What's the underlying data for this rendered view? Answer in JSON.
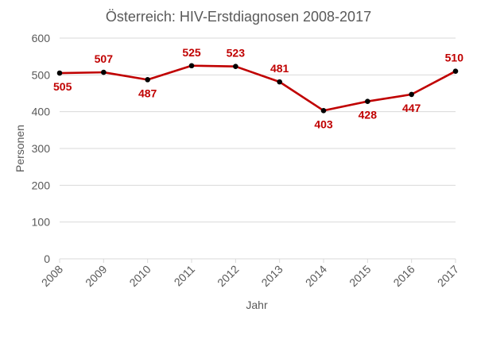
{
  "chart_data": {
    "type": "line",
    "title": "Österreich: HIV-Erstdiagnosen 2008-2017",
    "xlabel": "Jahr",
    "ylabel": "Personen",
    "categories": [
      "2008",
      "2009",
      "2010",
      "2011",
      "2012",
      "2013",
      "2014",
      "2015",
      "2016",
      "2017"
    ],
    "series": [
      {
        "values": [
          505,
          507,
          487,
          525,
          523,
          481,
          403,
          428,
          447,
          510
        ],
        "labels": [
          "505",
          "507",
          "487",
          "525",
          "523",
          "481",
          "403",
          "428",
          "447",
          "510"
        ],
        "color": "#c00000",
        "marker_color": "#000000"
      }
    ],
    "ylim": [
      0,
      600
    ],
    "yticks": [
      "0",
      "100",
      "200",
      "300",
      "400",
      "500",
      "600"
    ],
    "grid": true,
    "legend": "none"
  },
  "colors": {
    "grid": "#d9d9d9",
    "axis": "#d9d9d9",
    "text": "#595959",
    "series": "#c00000",
    "marker": "#000000"
  }
}
